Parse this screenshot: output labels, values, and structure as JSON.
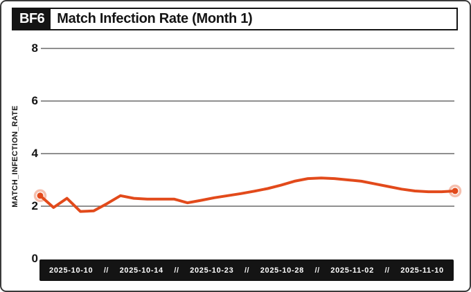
{
  "header": {
    "badge": "BF6",
    "title": "Match Infection Rate (Month 1)"
  },
  "chart_data": {
    "type": "line",
    "title": "Match Infection Rate (Month 1)",
    "xlabel": "",
    "ylabel": "MATCH_INFECTION_RATE",
    "ylim": [
      0,
      8
    ],
    "yticks": [
      8,
      6,
      4,
      2,
      0
    ],
    "xticklabels": [
      "2025-10-10",
      "2025-10-14",
      "2025-10-23",
      "2025-10-28",
      "2025-11-02",
      "2025-11-10"
    ],
    "xtick_separator": "//",
    "grid": "horizontal gridlines at 2,4,6,8",
    "legend": "none",
    "endpoint_markers": true,
    "series": [
      {
        "name": "match_infection_rate",
        "color": "#e24a1b",
        "values": [
          2.4,
          1.95,
          2.3,
          1.8,
          1.82,
          2.1,
          2.4,
          2.3,
          2.27,
          2.27,
          2.27,
          2.13,
          2.22,
          2.32,
          2.4,
          2.48,
          2.57,
          2.67,
          2.8,
          2.95,
          3.05,
          3.07,
          3.05,
          3.0,
          2.95,
          2.85,
          2.75,
          2.65,
          2.58,
          2.55,
          2.55,
          2.58
        ]
      }
    ]
  },
  "colors": {
    "line": "#e24a1b",
    "ink": "#141414",
    "gridline": "#6a6a6a",
    "axis_bar_bg": "#141414",
    "axis_bar_text": "#ffffff"
  }
}
